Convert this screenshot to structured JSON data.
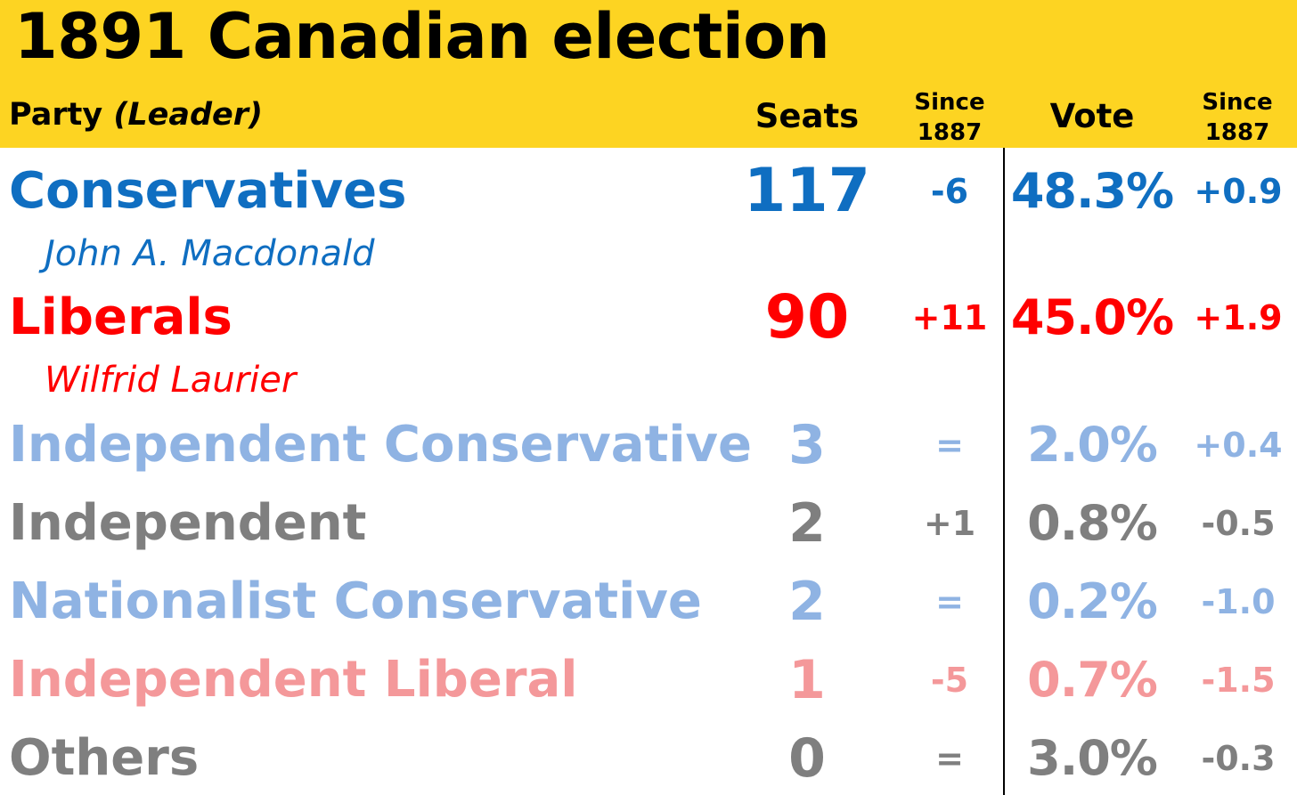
{
  "chart_data": {
    "type": "table",
    "title": "1891 Canadian election",
    "columns": {
      "party": "Party",
      "leader": "(Leader)",
      "seats": "Seats",
      "seats_change_line1": "Since",
      "seats_change_line2": "1887",
      "vote": "Vote",
      "vote_change_line1": "Since",
      "vote_change_line2": "1887"
    },
    "rows": [
      {
        "party": "Conservatives",
        "leader": "John A. Macdonald",
        "seats": "117",
        "seats_change": "-6",
        "vote": "48.3%",
        "vote_change": "+0.9",
        "color": "#0F6EC1"
      },
      {
        "party": "Liberals",
        "leader": "Wilfrid Laurier",
        "seats": "90",
        "seats_change": "+11",
        "vote": "45.0%",
        "vote_change": "+1.9",
        "color": "#FF0000"
      },
      {
        "party": "Independent Conservative",
        "seats": "3",
        "seats_change": "=",
        "vote": "2.0%",
        "vote_change": "+0.4",
        "color": "#8FB3E3"
      },
      {
        "party": "Independent",
        "seats": "2",
        "seats_change": "+1",
        "vote": "0.8%",
        "vote_change": "-0.5",
        "color": "#7F7F7F"
      },
      {
        "party": "Nationalist Conservative",
        "seats": "2",
        "seats_change": "=",
        "vote": "0.2%",
        "vote_change": "-1.0",
        "color": "#8FB3E3"
      },
      {
        "party": "Independent Liberal",
        "seats": "1",
        "seats_change": "-5",
        "vote": "0.7%",
        "vote_change": "-1.5",
        "color": "#F4989A"
      },
      {
        "party": "Others",
        "seats": "0",
        "seats_change": "=",
        "vote": "3.0%",
        "vote_change": "-0.3",
        "color": "#7F7F7F"
      }
    ]
  },
  "colors": {
    "header_background": "#FDD422",
    "header_text": "#000000",
    "divider": "#000000"
  }
}
